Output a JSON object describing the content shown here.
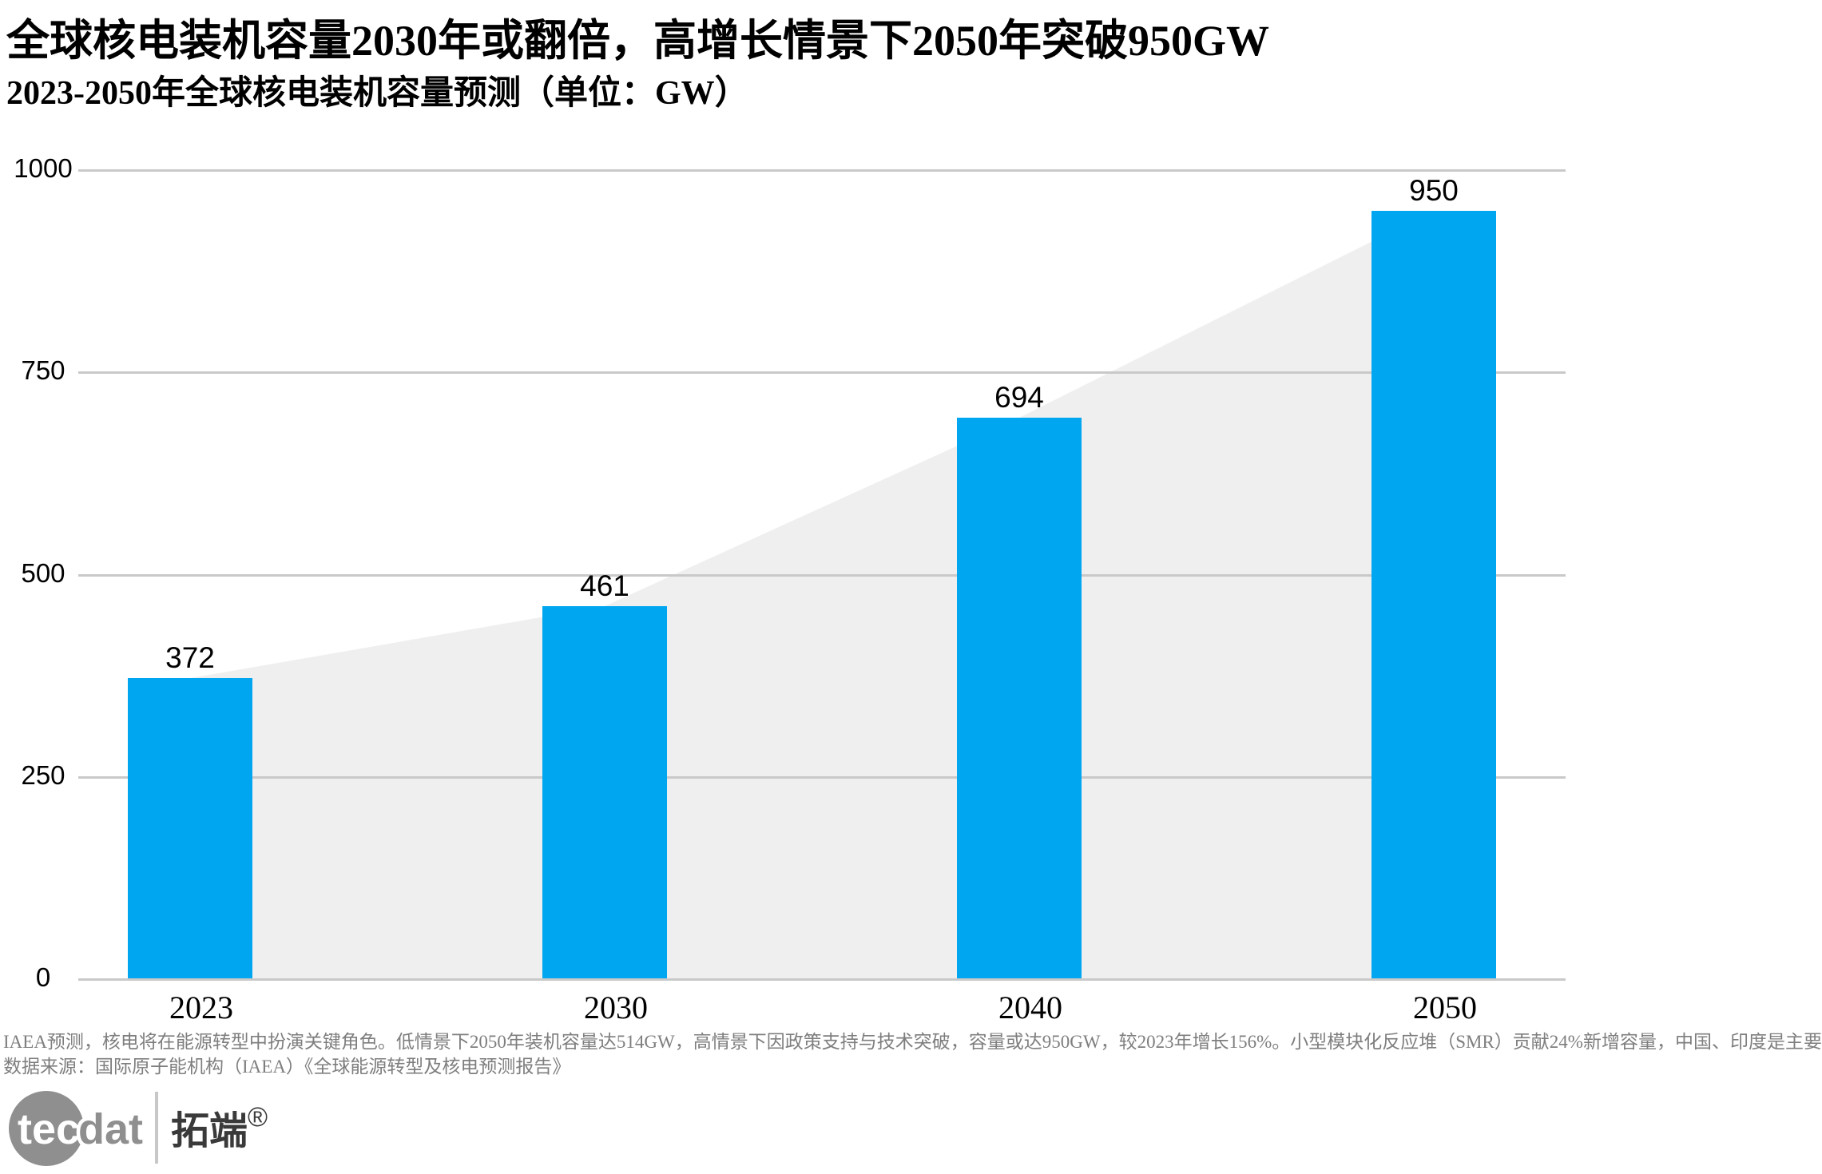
{
  "header": {
    "title": "全球核电装机容量2030年或翻倍，高增长情景下2050年突破950GW",
    "subtitle": "2023-2050年全球核电装机容量预测（单位：GW）"
  },
  "chart_data": {
    "type": "bar",
    "categories": [
      "2023",
      "2030",
      "2040",
      "2050"
    ],
    "values": [
      372,
      461,
      694,
      950
    ],
    "title": "全球核电装机容量2030年或翻倍，高增长情景下2050年突破950GW",
    "subtitle": "2023-2050年全球核电装机容量预测（单位：GW）",
    "xlabel": "",
    "ylabel": "",
    "unit": "GW",
    "ylim": [
      0,
      1000
    ],
    "yticks": [
      0,
      250,
      500,
      750,
      1000
    ],
    "grid": true,
    "legend": "none",
    "area_overlay": {
      "type": "area",
      "note": "light gray area connecting bar tops, drawn behind bars",
      "values": [
        372,
        461,
        694,
        950
      ]
    }
  },
  "colors": {
    "bar": "#00a7f0",
    "area": "#efefef",
    "gridline": "#c9c9c9",
    "text": "#000000",
    "footnote": "#7e7e7e",
    "logo_gray": "#8f8f8f",
    "brand_dark": "#3a3a3a",
    "logo_divider": "#c8c8c8"
  },
  "footnotes": {
    "line1": "IAEA预测，核电将在能源转型中扮演关键角色。低情景下2050年装机容量达514GW，高情景下因政策支持与技术突破，容量或达950GW，较2023年增长156%。小型模块化反应堆（SMR）贡献24%新增容量，中国、印度是主要",
    "line2": "数据来源：国际原子能机构（IAEA）《全球能源转型及核电预测报告》"
  },
  "logo": {
    "tec": "tec",
    "dat": "dat",
    "brand": "拓端",
    "reg": "®"
  }
}
